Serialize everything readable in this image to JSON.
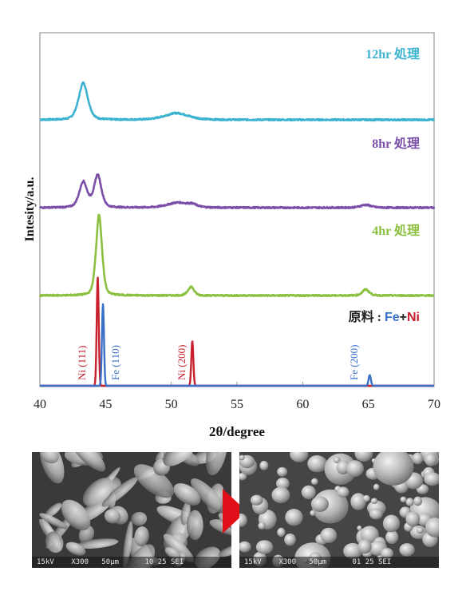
{
  "chart_data": {
    "type": "line",
    "xlabel": "2θ/degree",
    "ylabel": "Intesity/a.u.",
    "xlim": [
      40,
      70
    ],
    "xticks": [
      "40",
      "45",
      "50",
      "55",
      "60",
      "65",
      "70"
    ],
    "grid": false,
    "series": [
      {
        "name": "12hr 処理",
        "color": "#3bb3d0",
        "peaks": [
          {
            "x": 43.3,
            "height": 0.66,
            "width": 0.7
          },
          {
            "x": 50.4,
            "height": 0.12,
            "width": 1.8
          }
        ]
      },
      {
        "name": "8hr 処理",
        "color": "#7b4ea8",
        "peaks": [
          {
            "x": 43.3,
            "height": 0.46,
            "width": 0.6
          },
          {
            "x": 44.4,
            "height": 0.58,
            "width": 0.55
          },
          {
            "x": 50.5,
            "height": 0.09,
            "width": 1.6
          },
          {
            "x": 51.6,
            "height": 0.04,
            "width": 0.7
          },
          {
            "x": 64.8,
            "height": 0.05,
            "width": 0.8
          }
        ]
      },
      {
        "name": "4hr 処理",
        "color": "#8cc040",
        "peaks": [
          {
            "x": 44.5,
            "height": 1.45,
            "width": 0.45
          },
          {
            "x": 51.5,
            "height": 0.16,
            "width": 0.45
          },
          {
            "x": 64.8,
            "height": 0.11,
            "width": 0.5
          }
        ]
      },
      {
        "name": "Ni",
        "color": "#c8202d",
        "peaks": [
          {
            "x": 44.4,
            "height": 1.95,
            "width": 0.14
          },
          {
            "x": 51.6,
            "height": 0.8,
            "width": 0.14
          }
        ]
      },
      {
        "name": "Fe",
        "color": "#3a6fc8",
        "peaks": [
          {
            "x": 44.8,
            "height": 1.46,
            "width": 0.14
          },
          {
            "x": 65.1,
            "height": 0.19,
            "width": 0.16
          }
        ]
      }
    ],
    "annotations": [
      {
        "text": "Ni (111)",
        "x": 43.4,
        "color": "#c8202d"
      },
      {
        "text": "Fe (110)",
        "x": 45.7,
        "color": "#3a6fc8"
      },
      {
        "text": "Ni (200)",
        "x": 50.7,
        "color": "#c8202d"
      },
      {
        "text": "Fe (200)",
        "x": 64.0,
        "color": "#3a6fc8"
      }
    ],
    "legend": {
      "prefix": "原料 : ",
      "fe": "Fe",
      "plus": "+",
      "ni": "Ni"
    }
  },
  "micrographs": {
    "left_caption": "15kV    X300   50μm      10 25 SEI",
    "right_caption": "15kV    X300   50μm      01 25 SEI",
    "arrow_color": "#e10f1a"
  }
}
